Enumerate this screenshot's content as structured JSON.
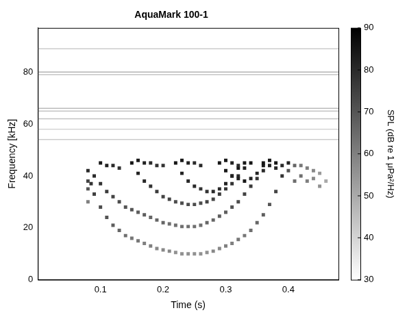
{
  "chart_data": {
    "type": "heatmap",
    "title": "AquaMark 100-1",
    "x_label": "Time (s)",
    "y_label": "Frequency [kHz]",
    "xlim": [
      0,
      0.48
    ],
    "xticks": [
      0.1,
      0.2,
      0.3,
      0.4
    ],
    "ylim": [
      0,
      97
    ],
    "yticks": [
      0,
      20,
      40,
      60,
      80
    ],
    "grid": false,
    "marker": "square",
    "colorbar": {
      "label": "SPL (dB re 1 μPa²/Hz)",
      "range": [
        30,
        90
      ],
      "ticks": [
        30,
        40,
        50,
        60,
        70,
        80,
        90
      ]
    },
    "noise_lines": [
      {
        "frequency": 89,
        "spl": 42
      },
      {
        "frequency": 80,
        "spl": 48
      },
      {
        "frequency": 79,
        "spl": 44
      },
      {
        "frequency": 66,
        "spl": 46
      },
      {
        "frequency": 65,
        "spl": 44
      },
      {
        "frequency": 62,
        "spl": 44
      },
      {
        "frequency": 58,
        "spl": 40
      },
      {
        "frequency": 54,
        "spl": 42
      }
    ],
    "cells": [
      [
        0.08,
        42,
        80
      ],
      [
        0.085,
        37,
        78
      ],
      [
        0.09,
        33,
        75
      ],
      [
        0.1,
        28,
        72
      ],
      [
        0.11,
        24,
        70
      ],
      [
        0.12,
        21,
        68
      ],
      [
        0.13,
        19,
        66
      ],
      [
        0.14,
        17,
        64
      ],
      [
        0.15,
        16,
        62
      ],
      [
        0.16,
        15,
        62
      ],
      [
        0.17,
        14,
        60
      ],
      [
        0.18,
        13,
        60
      ],
      [
        0.19,
        12,
        58
      ],
      [
        0.2,
        11.5,
        58
      ],
      [
        0.21,
        11,
        58
      ],
      [
        0.22,
        10.5,
        56
      ],
      [
        0.23,
        10,
        56
      ],
      [
        0.24,
        10,
        56
      ],
      [
        0.25,
        10,
        56
      ],
      [
        0.26,
        10,
        56
      ],
      [
        0.27,
        10.5,
        56
      ],
      [
        0.28,
        11,
        58
      ],
      [
        0.29,
        12,
        58
      ],
      [
        0.3,
        13,
        60
      ],
      [
        0.31,
        14,
        60
      ],
      [
        0.32,
        15.5,
        62
      ],
      [
        0.33,
        17,
        62
      ],
      [
        0.34,
        19,
        64
      ],
      [
        0.35,
        22,
        66
      ],
      [
        0.36,
        25,
        68
      ],
      [
        0.37,
        29,
        70
      ],
      [
        0.38,
        34,
        74
      ],
      [
        0.39,
        40,
        78
      ],
      [
        0.09,
        40,
        80
      ],
      [
        0.1,
        37,
        78
      ],
      [
        0.11,
        34,
        76
      ],
      [
        0.12,
        32,
        74
      ],
      [
        0.13,
        30,
        72
      ],
      [
        0.14,
        28,
        70
      ],
      [
        0.15,
        27,
        70
      ],
      [
        0.16,
        26,
        68
      ],
      [
        0.17,
        25,
        68
      ],
      [
        0.18,
        24,
        66
      ],
      [
        0.19,
        23,
        66
      ],
      [
        0.2,
        22,
        66
      ],
      [
        0.21,
        21.5,
        64
      ],
      [
        0.22,
        21,
        64
      ],
      [
        0.23,
        20.5,
        64
      ],
      [
        0.24,
        20.5,
        64
      ],
      [
        0.25,
        20.5,
        64
      ],
      [
        0.26,
        21,
        64
      ],
      [
        0.27,
        22,
        66
      ],
      [
        0.28,
        23,
        66
      ],
      [
        0.29,
        24.5,
        68
      ],
      [
        0.3,
        26,
        68
      ],
      [
        0.31,
        28,
        70
      ],
      [
        0.32,
        30,
        72
      ],
      [
        0.33,
        33,
        74
      ],
      [
        0.34,
        36,
        76
      ],
      [
        0.35,
        39,
        78
      ],
      [
        0.36,
        42,
        80
      ],
      [
        0.15,
        45,
        85
      ],
      [
        0.16,
        41,
        82
      ],
      [
        0.17,
        38,
        80
      ],
      [
        0.18,
        36,
        78
      ],
      [
        0.19,
        34,
        76
      ],
      [
        0.2,
        32,
        74
      ],
      [
        0.21,
        31,
        74
      ],
      [
        0.22,
        30,
        72
      ],
      [
        0.23,
        29.5,
        72
      ],
      [
        0.24,
        29,
        72
      ],
      [
        0.25,
        29,
        72
      ],
      [
        0.26,
        29.5,
        72
      ],
      [
        0.27,
        30,
        74
      ],
      [
        0.28,
        31,
        74
      ],
      [
        0.29,
        33,
        76
      ],
      [
        0.3,
        35,
        78
      ],
      [
        0.31,
        37,
        78
      ],
      [
        0.32,
        40,
        80
      ],
      [
        0.33,
        43,
        82
      ],
      [
        0.34,
        45,
        85
      ],
      [
        0.22,
        45,
        85
      ],
      [
        0.23,
        41,
        82
      ],
      [
        0.24,
        38,
        80
      ],
      [
        0.25,
        36,
        80
      ],
      [
        0.26,
        35,
        78
      ],
      [
        0.27,
        34,
        78
      ],
      [
        0.28,
        34,
        80
      ],
      [
        0.29,
        35,
        80
      ],
      [
        0.3,
        37,
        82
      ],
      [
        0.31,
        40,
        82
      ],
      [
        0.32,
        43,
        84
      ],
      [
        0.33,
        45,
        85
      ],
      [
        0.29,
        45,
        85
      ],
      [
        0.3,
        42,
        84
      ],
      [
        0.31,
        40,
        82
      ],
      [
        0.32,
        39,
        82
      ],
      [
        0.33,
        38,
        84
      ],
      [
        0.34,
        39,
        82
      ],
      [
        0.35,
        41,
        82
      ],
      [
        0.36,
        44,
        84
      ],
      [
        0.36,
        45,
        85
      ],
      [
        0.37,
        44,
        82
      ],
      [
        0.38,
        45,
        85
      ],
      [
        0.39,
        44,
        80
      ],
      [
        0.4,
        45,
        82
      ],
      [
        0.4,
        42,
        70
      ],
      [
        0.41,
        44,
        66
      ],
      [
        0.42,
        40,
        64
      ],
      [
        0.43,
        38,
        60
      ],
      [
        0.44,
        42,
        58
      ],
      [
        0.45,
        36,
        56
      ],
      [
        0.41,
        38,
        64
      ],
      [
        0.42,
        44,
        62
      ],
      [
        0.43,
        43,
        60
      ],
      [
        0.44,
        39,
        58
      ],
      [
        0.45,
        41,
        54
      ],
      [
        0.46,
        38,
        50
      ],
      [
        0.1,
        45,
        84
      ],
      [
        0.11,
        44,
        82
      ],
      [
        0.12,
        44,
        80
      ],
      [
        0.13,
        43,
        78
      ],
      [
        0.16,
        46,
        84
      ],
      [
        0.17,
        45,
        82
      ],
      [
        0.18,
        45,
        80
      ],
      [
        0.19,
        44,
        78
      ],
      [
        0.2,
        44,
        78
      ],
      [
        0.23,
        46,
        84
      ],
      [
        0.24,
        45,
        82
      ],
      [
        0.25,
        45,
        80
      ],
      [
        0.26,
        44,
        80
      ],
      [
        0.3,
        46,
        84
      ],
      [
        0.31,
        45,
        82
      ],
      [
        0.32,
        44,
        80
      ],
      [
        0.37,
        46,
        84
      ],
      [
        0.38,
        43,
        80
      ],
      [
        0.08,
        30,
        60
      ],
      [
        0.08,
        35,
        70
      ],
      [
        0.08,
        38,
        74
      ]
    ]
  }
}
